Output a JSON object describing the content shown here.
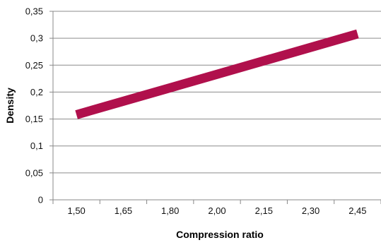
{
  "chart_data": {
    "type": "line",
    "title": "",
    "xlabel": "Compression ratio",
    "ylabel": "Density",
    "categories": [
      "1,50",
      "1,65",
      "1,80",
      "2,00",
      "2,15",
      "2,30",
      "2,45"
    ],
    "y_ticks": [
      "0",
      "0,05",
      "0,1",
      "0,15",
      "0,2",
      "0,25",
      "0,3",
      "0,35"
    ],
    "ylim": [
      0,
      0.35
    ],
    "grid": true,
    "legend": "none",
    "series": [
      {
        "values": [
          0.158,
          0.183,
          0.208,
          0.233,
          0.258,
          0.283,
          0.308
        ],
        "color": "#b0104c"
      }
    ]
  }
}
